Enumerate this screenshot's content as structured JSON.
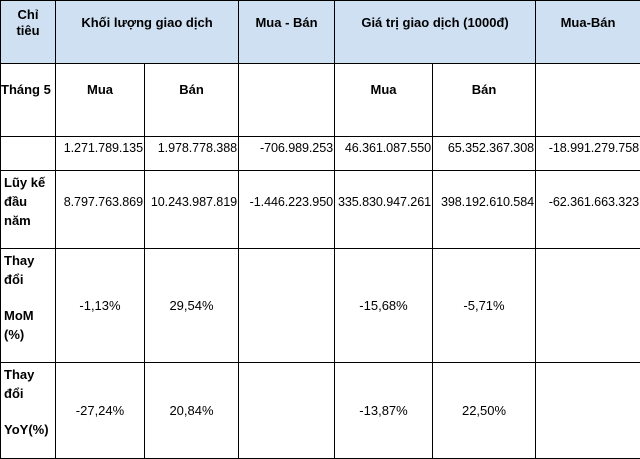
{
  "header": {
    "chi_tieu": [
      "Chỉ",
      "tiêu"
    ],
    "khoi_luong": "Khối lượng giao dịch",
    "mua_ban_1": "Mua - Bán",
    "gia_tri": "Giá trị giao dịch (1000đ)",
    "mua_ban_2": "Mua-Bán"
  },
  "sub_header": {
    "label": "Tháng 5",
    "kl_mua": "Mua",
    "kl_ban": "Bán",
    "gt_mua": "Mua",
    "gt_ban": "Bán"
  },
  "rows": {
    "thang5": {
      "kl_mua": "1.271.789.135",
      "kl_ban": "1.978.778.388",
      "kl_diff": "-706.989.253",
      "gt_mua": "46.361.087.550",
      "gt_ban": "65.352.367.308",
      "gt_diff": "-18.991.279.758"
    },
    "luy_ke": {
      "label": [
        "Lũy kế",
        "đầu",
        "năm"
      ],
      "kl_mua": "8.797.763.869",
      "kl_ban": "10.243.987.819",
      "kl_diff": "-1.446.223.950",
      "gt_mua": "335.830.947.261",
      "gt_ban": "398.192.610.584",
      "gt_diff": "-62.361.663.323"
    },
    "mom": {
      "label": [
        "Thay",
        "đổi",
        "MoM",
        "(%)"
      ],
      "kl_mua": "-1,13%",
      "kl_ban": "29,54%",
      "gt_mua": "-15,68%",
      "gt_ban": "-5,71%"
    },
    "yoy": {
      "label": [
        "Thay",
        "đổi",
        "YoY(%)"
      ],
      "kl_mua": "-27,24%",
      "kl_ban": "20,84%",
      "gt_mua": "-13,87%",
      "gt_ban": "22,50%"
    }
  },
  "colors": {
    "header_bg": "#cfe0f3",
    "border": "#000000"
  }
}
